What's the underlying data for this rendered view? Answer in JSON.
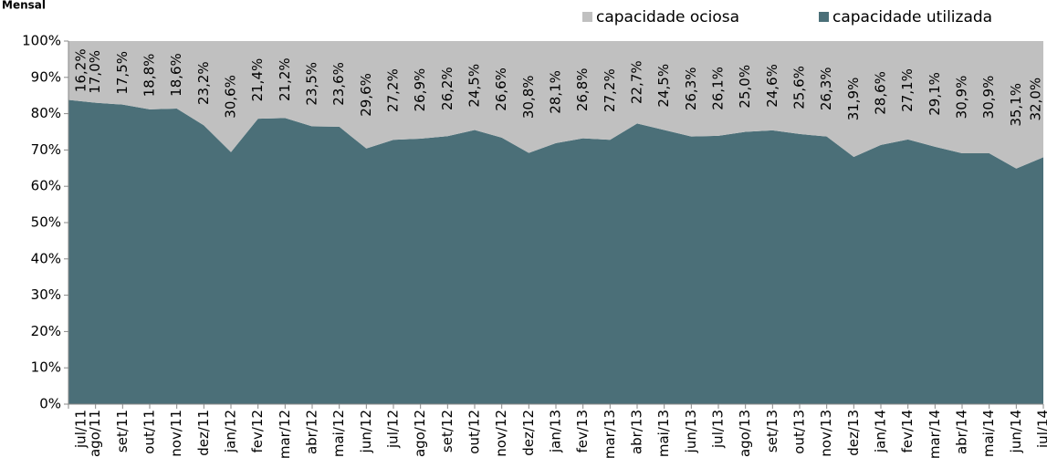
{
  "chart_data": {
    "type": "stacked_area",
    "title": "Mensal",
    "categories": [
      "jul/11",
      "ago/11",
      "set/11",
      "out/11",
      "nov/11",
      "dez/11",
      "jan/12",
      "fev/12",
      "mar/12",
      "abr/12",
      "mai/12",
      "jun/12",
      "jul/12",
      "ago/12",
      "set/12",
      "out/12",
      "nov/12",
      "dez/12",
      "jan/13",
      "fev/13",
      "mar/13",
      "abr/13",
      "mai/13",
      "jun/13",
      "jul/13",
      "ago/13",
      "set/13",
      "out/13",
      "nov/13",
      "dez/13",
      "jan/14",
      "fev/14",
      "mar/14",
      "abr/14",
      "mai/14",
      "jun/14",
      "jul/14"
    ],
    "series": [
      {
        "name": "capacidade utilizada",
        "color": "#4b6f78",
        "values": [
          83.8,
          83.0,
          82.5,
          81.2,
          81.4,
          76.8,
          69.4,
          78.6,
          78.8,
          76.5,
          76.4,
          70.4,
          72.8,
          73.1,
          73.8,
          75.5,
          73.4,
          69.2,
          71.9,
          73.2,
          72.8,
          77.3,
          75.5,
          73.7,
          73.9,
          75.0,
          75.4,
          74.4,
          73.7,
          68.1,
          71.4,
          72.9,
          70.9,
          69.1,
          69.1,
          64.9,
          68.0
        ]
      },
      {
        "name": "capacidade ociosa",
        "color": "#c0c0c0",
        "values": [
          16.2,
          17.0,
          17.5,
          18.8,
          18.6,
          23.2,
          30.6,
          21.4,
          21.2,
          23.5,
          23.6,
          29.6,
          27.2,
          26.9,
          26.2,
          24.5,
          26.6,
          30.8,
          28.1,
          26.8,
          27.2,
          22.7,
          24.5,
          26.3,
          26.1,
          25.0,
          24.6,
          25.6,
          26.3,
          31.9,
          28.6,
          27.1,
          29.1,
          30.9,
          30.9,
          35.1,
          32.0
        ],
        "value_labels": [
          "16,2%",
          "17,0%",
          "17,5%",
          "18,8%",
          "18,6%",
          "23,2%",
          "30,6%",
          "21,4%",
          "21,2%",
          "23,5%",
          "23,6%",
          "29,6%",
          "27,2%",
          "26,9%",
          "26,2%",
          "24,5%",
          "26,6%",
          "30,8%",
          "28,1%",
          "26,8%",
          "27,2%",
          "22,7%",
          "24,5%",
          "26,3%",
          "26,1%",
          "25,0%",
          "24,6%",
          "25,6%",
          "26,3%",
          "31,9%",
          "28,6%",
          "27,1%",
          "29,1%",
          "30,9%",
          "30,9%",
          "35,1%",
          "32,0%"
        ]
      }
    ],
    "ylim": [
      0,
      100
    ],
    "yticks": [
      {
        "value": 0,
        "label": "0%"
      },
      {
        "value": 10,
        "label": "10%"
      },
      {
        "value": 20,
        "label": "20%"
      },
      {
        "value": 30,
        "label": "30%"
      },
      {
        "value": 40,
        "label": "40%"
      },
      {
        "value": 50,
        "label": "50%"
      },
      {
        "value": 60,
        "label": "60%"
      },
      {
        "value": 70,
        "label": "70%"
      },
      {
        "value": 80,
        "label": "80%"
      },
      {
        "value": 90,
        "label": "90%"
      },
      {
        "value": 100,
        "label": "100%"
      }
    ],
    "legend": "top-right"
  }
}
